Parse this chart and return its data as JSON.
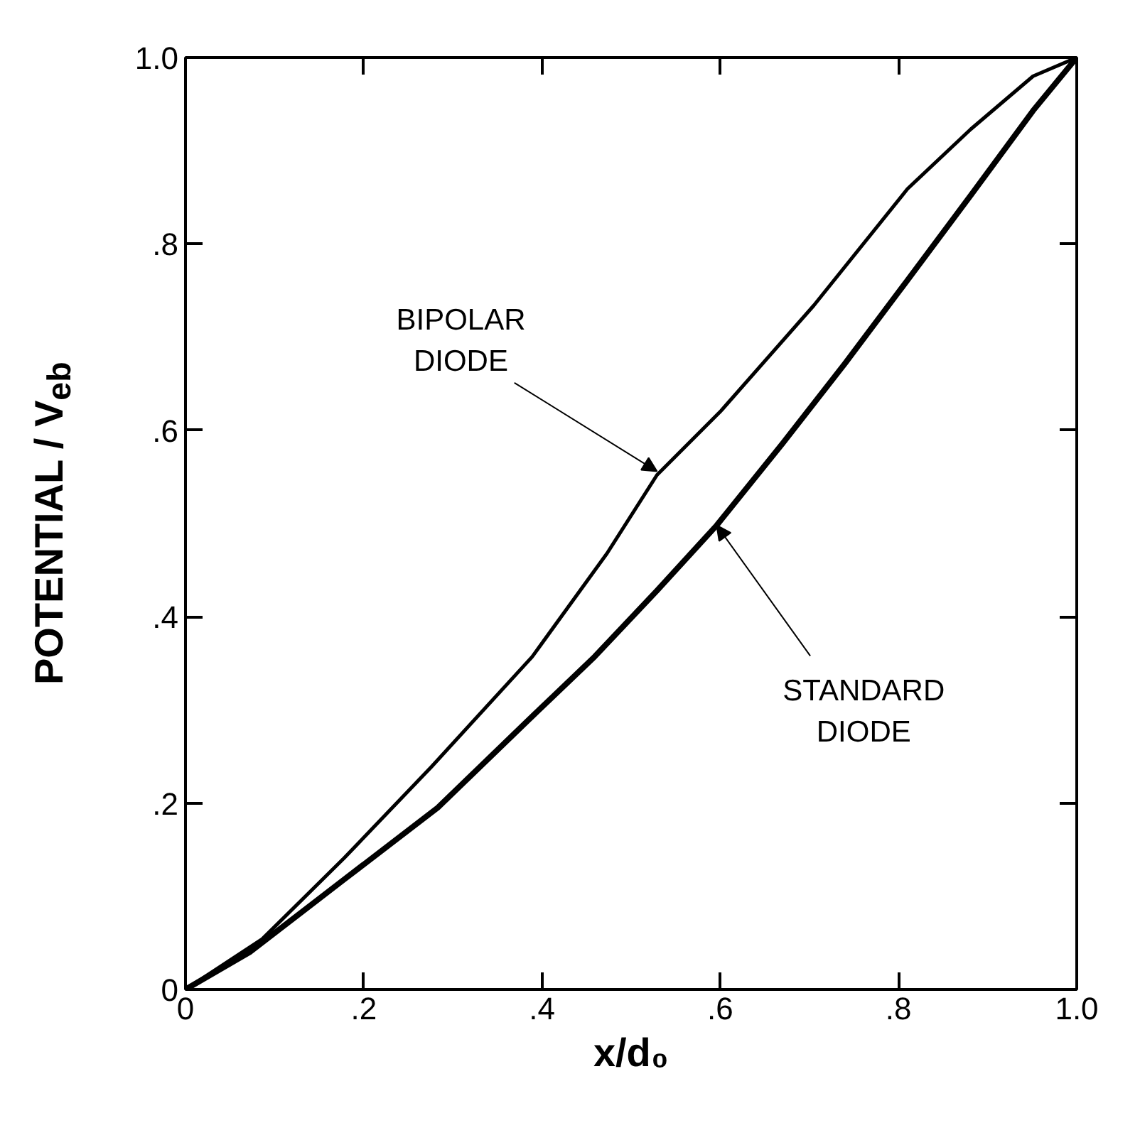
{
  "chart_data": {
    "type": "line",
    "xlabel": "x/d₀",
    "ylabel": "POTENTIAL / V$_{eb}$",
    "xlim": [
      0,
      1.0
    ],
    "ylim": [
      0,
      1.0
    ],
    "xticks": [
      0,
      {
        "value": 0.2,
        "label": ".2"
      },
      {
        "value": 0.4,
        "label": ".4"
      },
      {
        "value": 0.6,
        "label": ".6"
      },
      {
        "value": 0.8,
        "label": ".8"
      },
      {
        "value": 1.0,
        "label": "1.0"
      }
    ],
    "yticks": [
      0,
      {
        "value": 0.2,
        "label": ".2"
      },
      {
        "value": 0.4,
        "label": ".4"
      },
      {
        "value": 0.6,
        "label": ".6"
      },
      {
        "value": 0.8,
        "label": ".8"
      },
      {
        "value": 1.0,
        "label": "1.0"
      }
    ],
    "series": [
      {
        "color": "#000000",
        "x": [
          0,
          0.086,
          0.178,
          0.276,
          0.389,
          0.473,
          0.529,
          0.6,
          0.705,
          0.81,
          0.881,
          0.951,
          1.0
        ],
        "values": [
          0,
          0.054,
          0.141,
          0.239,
          0.357,
          0.468,
          0.552,
          0.62,
          0.734,
          0.859,
          0.923,
          0.98,
          1.0
        ]
      },
      {
        "color": "#000000",
        "x": [
          0,
          0.072,
          0.178,
          0.283,
          0.389,
          0.459,
          0.529,
          0.596,
          0.67,
          0.741,
          0.81,
          0.881,
          0.951,
          1.0
        ],
        "values": [
          0,
          0.04,
          0.118,
          0.195,
          0.293,
          0.357,
          0.428,
          0.498,
          0.586,
          0.673,
          0.761,
          0.852,
          0.943,
          1.0
        ]
      }
    ],
    "annotations": [
      {
        "text": "BIPOLAR\nDIODE",
        "x": 0.529,
        "y": 0.556
      },
      {
        "text": "STANDARD\nDIODE",
        "x": 0.596,
        "y": 0.498
      }
    ],
    "grid": false,
    "marker": "none",
    "line_style": "solid"
  }
}
